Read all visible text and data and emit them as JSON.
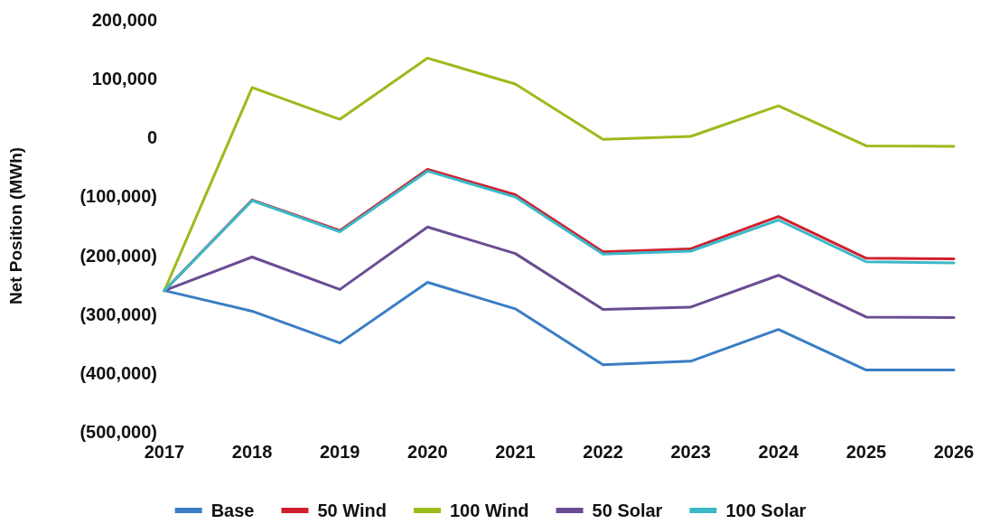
{
  "chart_data": {
    "type": "line",
    "ylabel": "Net Position (MWh)",
    "categories": [
      "2017",
      "2018",
      "2019",
      "2020",
      "2021",
      "2022",
      "2023",
      "2024",
      "2025",
      "2026"
    ],
    "series": [
      {
        "name": "Base",
        "color": "#3a7dc4",
        "values": [
          -260000,
          -295000,
          -349000,
          -246000,
          -291000,
          -386000,
          -380000,
          -326000,
          -395000,
          -395000
        ]
      },
      {
        "name": "50 Wind",
        "color": "#d0202e",
        "values": [
          -260000,
          -106000,
          -158000,
          -54000,
          -97000,
          -194000,
          -189000,
          -134000,
          -205000,
          -206000
        ]
      },
      {
        "name": "100 Wind",
        "color": "#9bbb1c",
        "values": [
          -260000,
          85000,
          31000,
          135000,
          91000,
          -3000,
          2000,
          54000,
          -14000,
          -15000
        ]
      },
      {
        "name": "50 Solar",
        "color": "#6a4c93",
        "values": [
          -260000,
          -203000,
          -258000,
          -152000,
          -197000,
          -292000,
          -288000,
          -234000,
          -305000,
          -306000
        ]
      },
      {
        "name": "100 Solar",
        "color": "#3cb8c8",
        "values": [
          -260000,
          -107000,
          -160000,
          -57000,
          -101000,
          -198000,
          -193000,
          -140000,
          -211000,
          -213000
        ]
      }
    ],
    "ylim": [
      -500000,
      200000
    ],
    "yticks": [
      {
        "value": -500000,
        "label": "(500,000)"
      },
      {
        "value": -400000,
        "label": "(400,000)"
      },
      {
        "value": -300000,
        "label": "(300,000)"
      },
      {
        "value": -200000,
        "label": "(200,000)"
      },
      {
        "value": -100000,
        "label": "(100,000)"
      },
      0,
      {
        "value": 100000,
        "label": "100,000"
      },
      {
        "value": 200000,
        "label": "200,000"
      }
    ],
    "grid": false,
    "legend": "bottom",
    "marker": "none",
    "line_style": "solid"
  }
}
